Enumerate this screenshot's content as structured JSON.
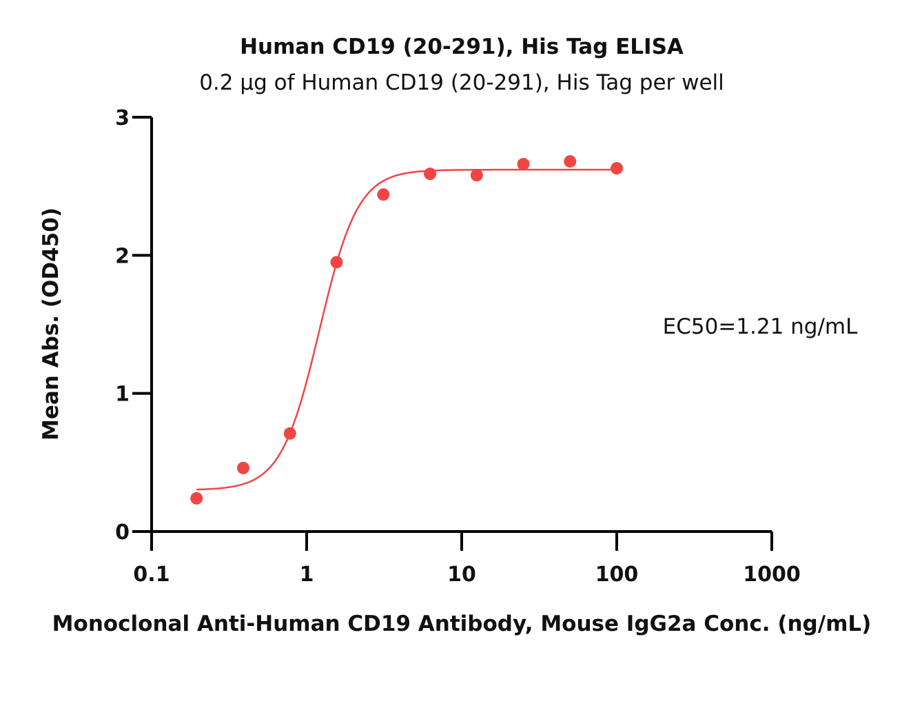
{
  "chart_data": {
    "type": "scatter",
    "title": "Human CD19 (20-291), His Tag ELISA",
    "subtitle": "0.2 μg of Human CD19 (20-291), His Tag per well",
    "xlabel": "Monoclonal Anti-Human CD19 Antibody, Mouse IgG2a Conc. (ng/mL)",
    "ylabel": "Mean Abs. (OD450)",
    "x_scale": "log",
    "xlim": [
      0.1,
      1000
    ],
    "ylim": [
      0,
      3
    ],
    "x_ticks": [
      0.1,
      1,
      10,
      100,
      1000
    ],
    "x_tick_labels": [
      "0.1",
      "1",
      "10",
      "100",
      "1000"
    ],
    "y_ticks": [
      0,
      1,
      2,
      3
    ],
    "y_tick_labels": [
      "0",
      "1",
      "2",
      "3"
    ],
    "grid": false,
    "annotation": "EC50=1.21 ng/mL",
    "series": [
      {
        "color": "#f04545",
        "x": [
          0.195,
          0.39,
          0.78,
          1.56,
          3.125,
          6.25,
          12.5,
          25,
          50,
          100
        ],
        "y": [
          0.24,
          0.46,
          0.71,
          1.95,
          2.44,
          2.59,
          2.58,
          2.66,
          2.68,
          2.63
        ]
      }
    ],
    "fit_curve": {
      "model": "4PL",
      "bottom": 0.3,
      "top": 2.62,
      "ec50": 1.21,
      "hill": 3.5,
      "x_range": [
        0.195,
        100
      ]
    }
  }
}
